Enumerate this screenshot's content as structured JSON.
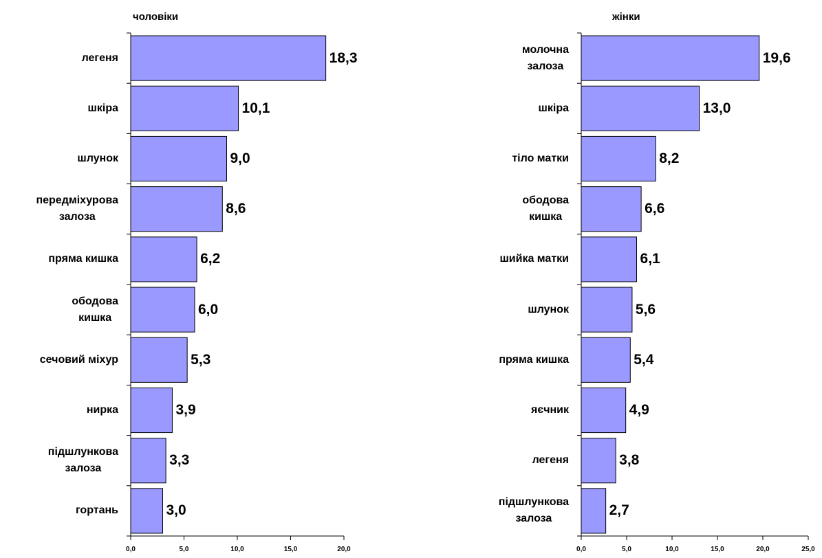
{
  "chart_data": [
    {
      "type": "barh",
      "title": "чоловіки",
      "categories": [
        "легеня",
        "шкіра",
        "шлунок",
        "передміхурова\nзалоза",
        "пряма кишка",
        "ободова\nкишка",
        "сечовий міхур",
        "нирка",
        "підшлункова\nзалоза",
        "гортань"
      ],
      "values": [
        18.3,
        10.1,
        9.0,
        8.6,
        6.2,
        6.0,
        5.3,
        3.9,
        3.3,
        3.0
      ],
      "value_labels": [
        "18,3",
        "10,1",
        "9,0",
        "8,6",
        "6,2",
        "6,0",
        "5,3",
        "3,9",
        "3,3",
        "3,0"
      ],
      "color": "#9999ff",
      "xlim": [
        0,
        20
      ],
      "xticks": [
        {
          "value": 0,
          "label": "0,0"
        },
        {
          "value": 5,
          "label": "5,0"
        },
        {
          "value": 10,
          "label": "10,0"
        },
        {
          "value": 15,
          "label": "15,0"
        },
        {
          "value": 20,
          "label": "20,0"
        }
      ]
    },
    {
      "type": "barh",
      "title": "жінки",
      "categories": [
        "молочна\nзалоза",
        "шкіра",
        "тіло матки",
        "ободова\nкишка",
        "шийка матки",
        "шлунок",
        "пряма кишка",
        "яєчник",
        "легеня",
        "підшлункова\nзалоза"
      ],
      "values": [
        19.6,
        13.0,
        8.2,
        6.6,
        6.1,
        5.6,
        5.4,
        4.9,
        3.8,
        2.7
      ],
      "value_labels": [
        "19,6",
        "13,0",
        "8,2",
        "6,6",
        "6,1",
        "5,6",
        "5,4",
        "4,9",
        "3,8",
        "2,7"
      ],
      "color": "#9999ff",
      "xlim": [
        0,
        25
      ],
      "xticks": [
        {
          "value": 0,
          "label": "0,0"
        },
        {
          "value": 5,
          "label": "5,0"
        },
        {
          "value": 10,
          "label": "10,0"
        },
        {
          "value": 15,
          "label": "15,0"
        },
        {
          "value": 20,
          "label": "20,0"
        },
        {
          "value": 25,
          "label": "25,0"
        }
      ]
    }
  ]
}
